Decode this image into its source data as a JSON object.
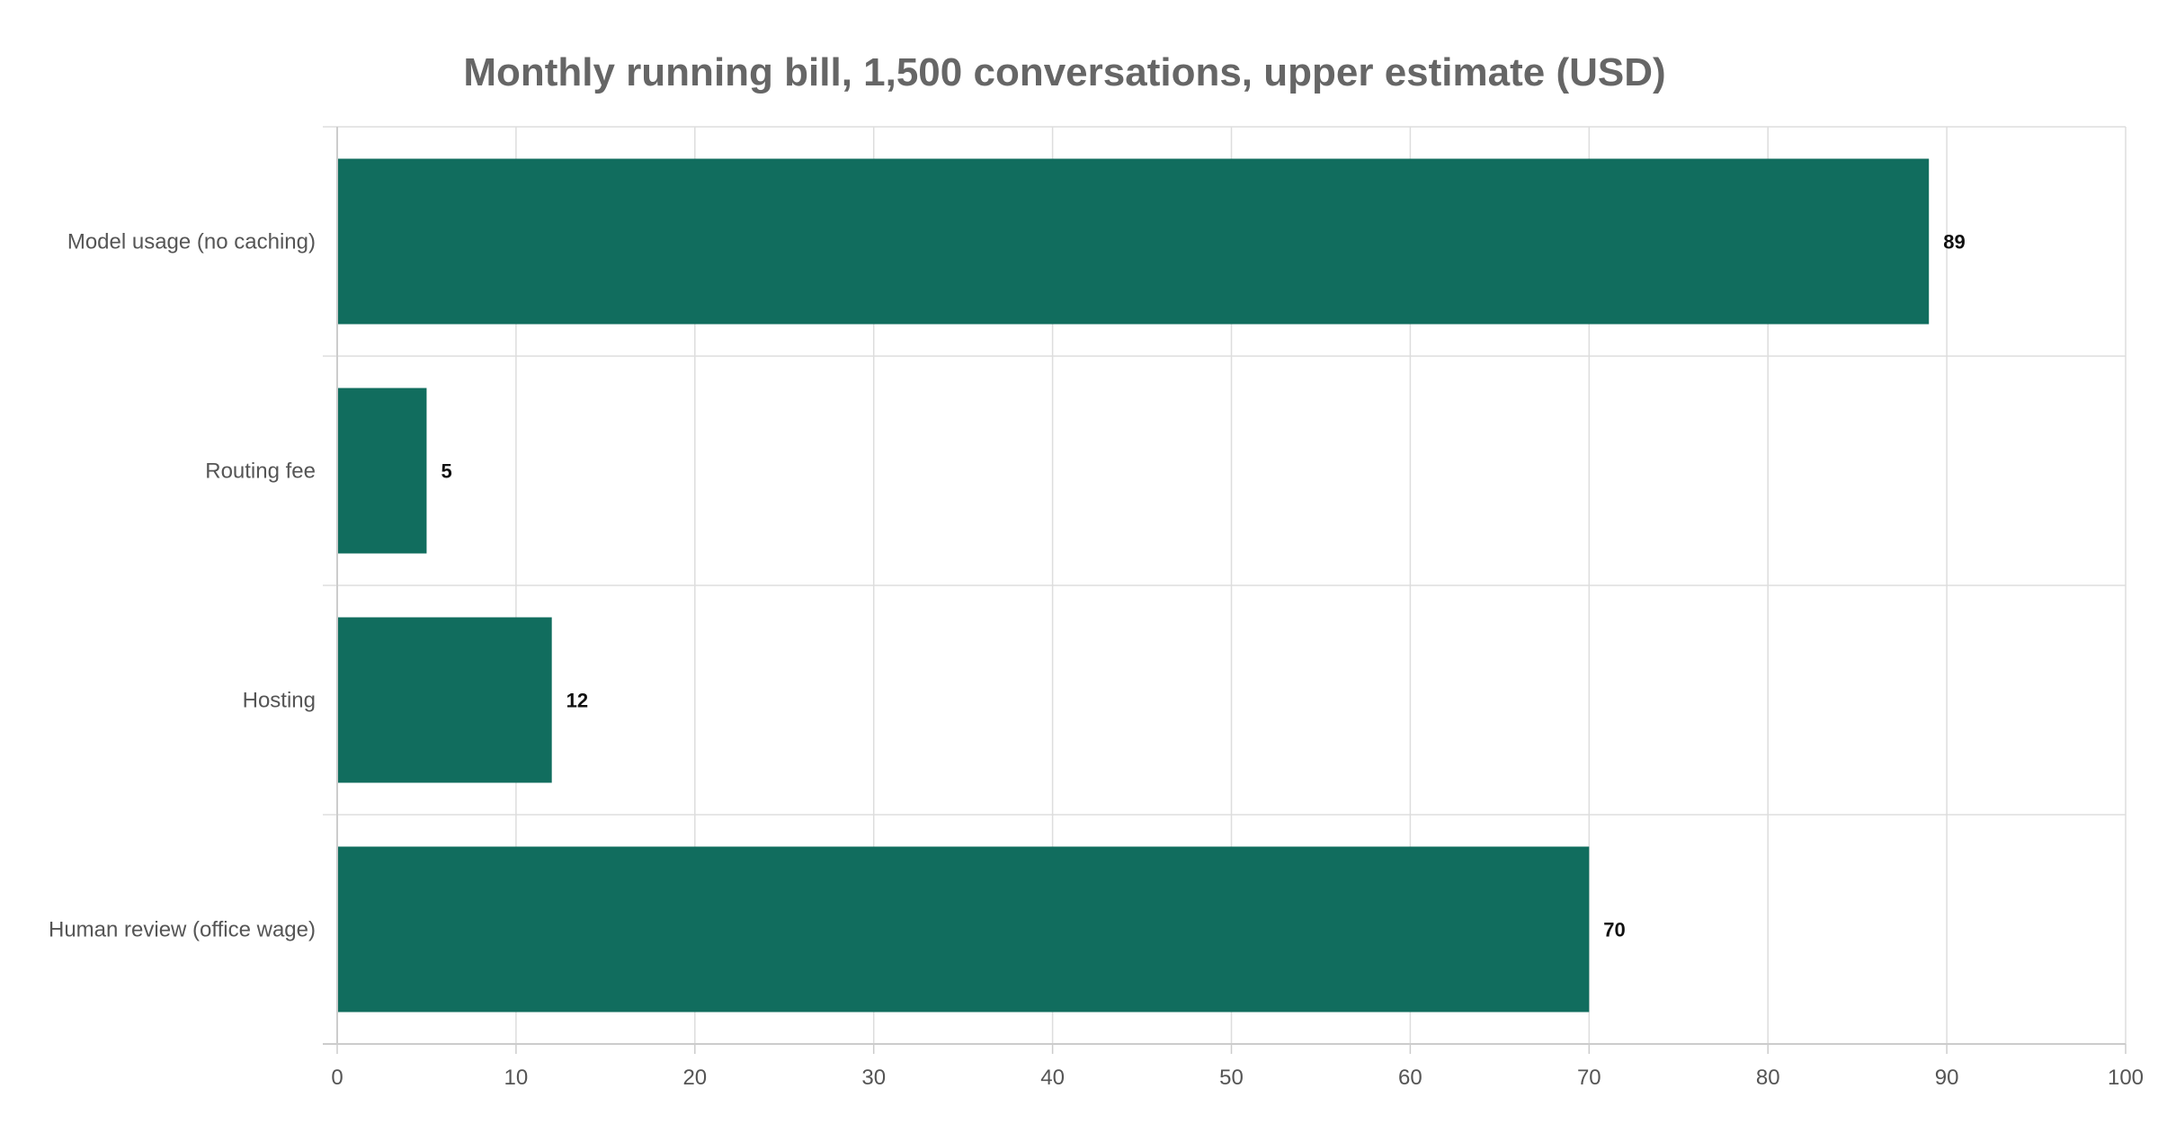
{
  "chart_data": {
    "type": "bar",
    "orientation": "horizontal",
    "title": "Monthly running bill, 1,500 conversations, upper estimate (USD)",
    "xlabel": "",
    "ylabel": "",
    "categories": [
      "Model usage (no caching)",
      "Routing fee",
      "Hosting",
      "Human review (office wage)"
    ],
    "values": [
      89,
      5,
      12,
      70
    ],
    "value_labels": [
      "89",
      "5",
      "12",
      "70"
    ],
    "xlim": [
      0,
      100
    ],
    "x_ticks": [
      0,
      10,
      20,
      30,
      40,
      50,
      60,
      70,
      80,
      90,
      100
    ],
    "x_tick_labels": [
      "0",
      "10",
      "20",
      "30",
      "40",
      "50",
      "60",
      "70",
      "80",
      "90",
      "100"
    ],
    "grid": true,
    "legend": "none",
    "bar_color": "#116d5e",
    "grid_color": "#dddddd",
    "axis_color": "#cccccc"
  }
}
